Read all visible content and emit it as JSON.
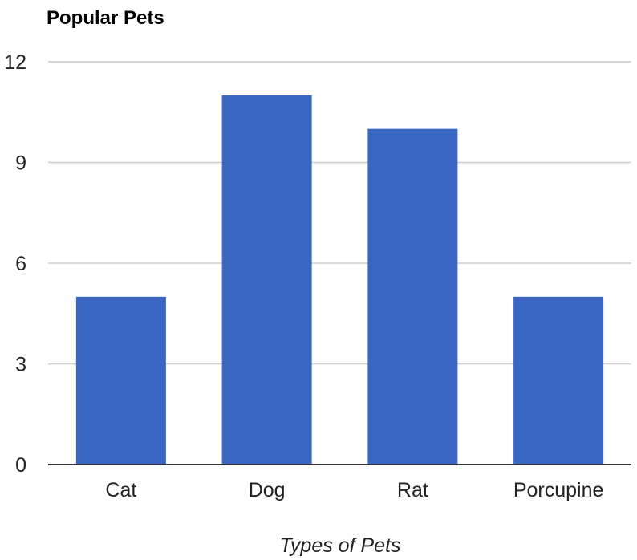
{
  "chart_data": {
    "type": "bar",
    "title": "Popular Pets",
    "xlabel": "Types of Pets",
    "ylabel": "",
    "categories": [
      "Cat",
      "Dog",
      "Rat",
      "Porcupine"
    ],
    "values": [
      5,
      11,
      10,
      5
    ],
    "ylim": [
      0,
      12
    ],
    "yticks": [
      "0",
      "3",
      "6",
      "9",
      "12"
    ],
    "grid": true,
    "legend": "none",
    "bar_color": "#3a67c4",
    "grid_color": "#cccccc",
    "baseline_color": "#333333"
  }
}
